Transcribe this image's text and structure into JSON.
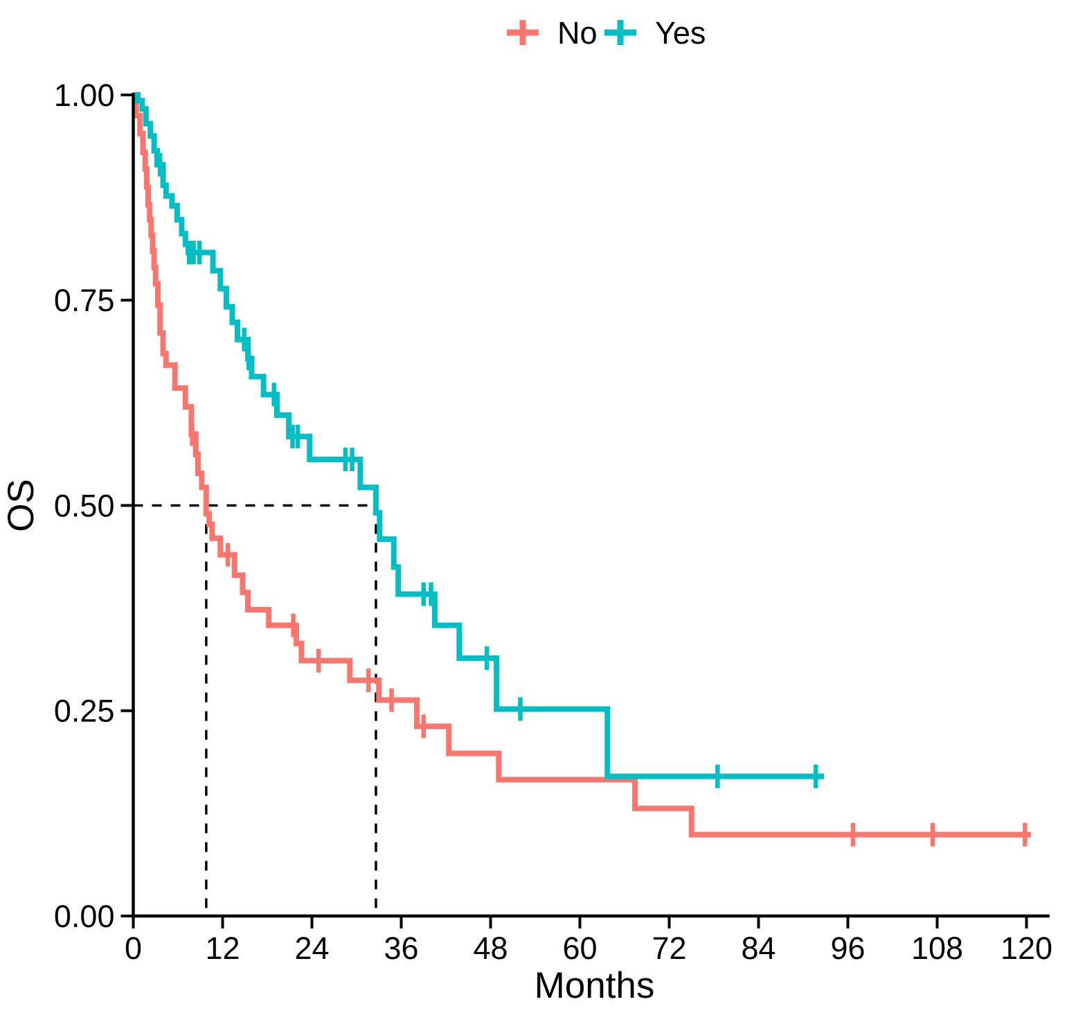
{
  "figure": {
    "kind": "kaplan-meier-survival-plot",
    "background": "#ffffff"
  },
  "chart_data": {
    "type": "line",
    "km_step": true,
    "title": "",
    "xlabel": "Months",
    "ylabel": "OS",
    "xlim": [
      0,
      120
    ],
    "ylim": [
      0,
      1
    ],
    "x_ticks": [
      0,
      12,
      24,
      36,
      48,
      60,
      72,
      84,
      96,
      108,
      120
    ],
    "y_ticks": [
      {
        "value": 0,
        "label": "0.00"
      },
      {
        "value": 0.25,
        "label": "0.25"
      },
      {
        "value": 0.5,
        "label": "0.50"
      },
      {
        "value": 0.75,
        "label": "0.75"
      },
      {
        "value": 1,
        "label": "1.00"
      }
    ],
    "grid": false,
    "axis_color": "#000000",
    "legend": {
      "position": "top-center",
      "entries": [
        {
          "label": "No",
          "color": "#F8766D"
        },
        {
          "label": "Yes",
          "color": "#00BFC4"
        }
      ]
    },
    "median_guides": {
      "survival_level": 0.5,
      "times": [
        9.8,
        32.6
      ],
      "line_style": "dashed",
      "color": "#000000"
    },
    "series": [
      {
        "name": "No",
        "color": "#F8766D",
        "end_time": 120.6,
        "steps": [
          [
            0,
            1.0
          ],
          [
            0.4,
            0.975
          ],
          [
            0.9,
            0.953
          ],
          [
            1.3,
            0.93
          ],
          [
            1.6,
            0.91
          ],
          [
            1.8,
            0.888
          ],
          [
            2.0,
            0.866
          ],
          [
            2.2,
            0.848
          ],
          [
            2.4,
            0.829
          ],
          [
            2.6,
            0.81
          ],
          [
            2.8,
            0.79
          ],
          [
            3.0,
            0.77
          ],
          [
            3.3,
            0.744
          ],
          [
            3.6,
            0.71
          ],
          [
            4.0,
            0.685
          ],
          [
            4.4,
            0.671
          ],
          [
            5.6,
            0.643
          ],
          [
            7.0,
            0.62
          ],
          [
            7.8,
            0.587
          ],
          [
            8.4,
            0.562
          ],
          [
            8.7,
            0.539
          ],
          [
            9.2,
            0.522
          ],
          [
            9.8,
            0.49
          ],
          [
            10.2,
            0.477
          ],
          [
            10.6,
            0.46
          ],
          [
            11.7,
            0.44
          ],
          [
            13.6,
            0.415
          ],
          [
            14.7,
            0.394
          ],
          [
            15.4,
            0.373
          ],
          [
            18.2,
            0.354
          ],
          [
            21.9,
            0.332
          ],
          [
            22.6,
            0.311
          ],
          [
            29.1,
            0.287
          ],
          [
            33.0,
            0.263
          ],
          [
            38.1,
            0.231
          ],
          [
            42.4,
            0.198
          ],
          [
            49.1,
            0.166
          ],
          [
            67.4,
            0.131
          ],
          [
            75.0,
            0.099
          ]
        ],
        "censors": [
          [
            7.9,
            0.587
          ],
          [
            12.7,
            0.44
          ],
          [
            21.5,
            0.354
          ],
          [
            24.9,
            0.311
          ],
          [
            31.6,
            0.287
          ],
          [
            34.7,
            0.263
          ],
          [
            39.0,
            0.231
          ],
          [
            96.7,
            0.099
          ],
          [
            107.4,
            0.099
          ],
          [
            119.8,
            0.099
          ]
        ]
      },
      {
        "name": "Yes",
        "color": "#00BFC4",
        "end_time": 92.8,
        "steps": [
          [
            0,
            1.0
          ],
          [
            0.6,
            0.993
          ],
          [
            1.2,
            0.983
          ],
          [
            1.7,
            0.965
          ],
          [
            2.3,
            0.95
          ],
          [
            2.8,
            0.932
          ],
          [
            3.2,
            0.915
          ],
          [
            4.0,
            0.89
          ],
          [
            4.4,
            0.877
          ],
          [
            5.2,
            0.865
          ],
          [
            5.9,
            0.848
          ],
          [
            6.5,
            0.831
          ],
          [
            7.0,
            0.818
          ],
          [
            7.4,
            0.808
          ],
          [
            10.7,
            0.786
          ],
          [
            11.7,
            0.764
          ],
          [
            12.5,
            0.742
          ],
          [
            13.3,
            0.723
          ],
          [
            14.0,
            0.702
          ],
          [
            15.4,
            0.679
          ],
          [
            15.9,
            0.657
          ],
          [
            17.5,
            0.635
          ],
          [
            19.3,
            0.61
          ],
          [
            20.9,
            0.584
          ],
          [
            23.7,
            0.556
          ],
          [
            30.5,
            0.522
          ],
          [
            32.6,
            0.491
          ],
          [
            33.1,
            0.459
          ],
          [
            35.0,
            0.425
          ],
          [
            35.6,
            0.392
          ],
          [
            40.5,
            0.354
          ],
          [
            43.8,
            0.314
          ],
          [
            48.8,
            0.252
          ],
          [
            63.7,
            0.17
          ]
        ],
        "censors": [
          [
            3.6,
            0.915
          ],
          [
            7.5,
            0.808
          ],
          [
            8.1,
            0.808
          ],
          [
            8.9,
            0.808
          ],
          [
            14.9,
            0.702
          ],
          [
            15.5,
            0.679
          ],
          [
            18.9,
            0.635
          ],
          [
            21.4,
            0.584
          ],
          [
            22.1,
            0.584
          ],
          [
            28.5,
            0.556
          ],
          [
            29.4,
            0.556
          ],
          [
            39.0,
            0.392
          ],
          [
            40.0,
            0.392
          ],
          [
            47.5,
            0.314
          ],
          [
            52.0,
            0.252
          ],
          [
            78.5,
            0.17
          ],
          [
            91.7,
            0.17
          ]
        ]
      }
    ]
  }
}
